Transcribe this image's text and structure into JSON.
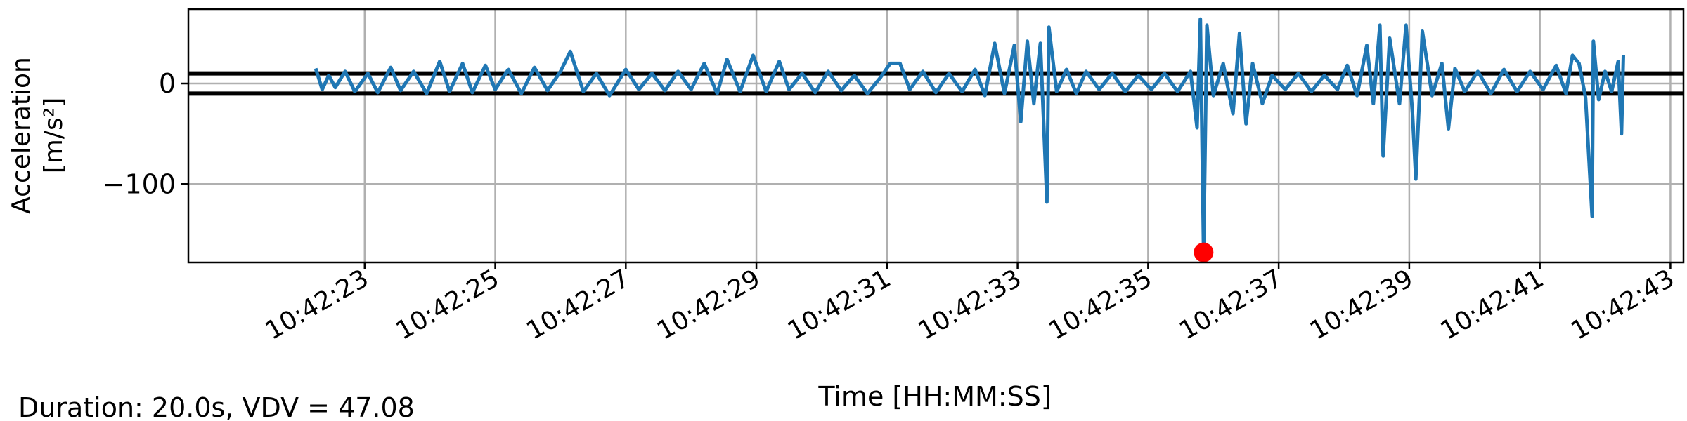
{
  "chart_data": {
    "type": "line",
    "xlabel": "Time [HH:MM:SS]",
    "ylabel_line1": "Acceleration",
    "ylabel_line2": "[m/s²]",
    "footer": "Duration: 20.0s, VDV = 47.08",
    "xlim": [
      "10:42:20.3",
      "10:42:43.2"
    ],
    "ylim": [
      -178,
      74
    ],
    "grid": true,
    "x_ticks": [
      "10:42:23",
      "10:42:25",
      "10:42:27",
      "10:42:29",
      "10:42:31",
      "10:42:33",
      "10:42:35",
      "10:42:37",
      "10:42:39",
      "10:42:41",
      "10:42:43"
    ],
    "y_ticks": [
      0,
      -100
    ],
    "y_tick_labels": [
      "0",
      "−100"
    ],
    "thresholds": [
      10,
      -10
    ],
    "threshold_color": "#000000",
    "series": [
      {
        "color": "#1f77b4",
        "points": [
          [
            "10:42:22.25",
            15
          ],
          [
            "10:42:22.35",
            -6
          ],
          [
            "10:42:22.45",
            8
          ],
          [
            "10:42:22.55",
            -4
          ],
          [
            "10:42:22.7",
            12
          ],
          [
            "10:42:22.85",
            -8
          ],
          [
            "10:42:23.05",
            10
          ],
          [
            "10:42:23.2",
            -9
          ],
          [
            "10:42:23.4",
            16
          ],
          [
            "10:42:23.55",
            -7
          ],
          [
            "10:42:23.75",
            12
          ],
          [
            "10:42:23.95",
            -10
          ],
          [
            "10:42:24.15",
            22
          ],
          [
            "10:42:24.3",
            -8
          ],
          [
            "10:42:24.5",
            20
          ],
          [
            "10:42:24.65",
            -9
          ],
          [
            "10:42:24.85",
            18
          ],
          [
            "10:42:25.0",
            -6
          ],
          [
            "10:42:25.2",
            14
          ],
          [
            "10:42:25.4",
            -10
          ],
          [
            "10:42:25.6",
            16
          ],
          [
            "10:42:25.8",
            -7
          ],
          [
            "10:42:26.0",
            12
          ],
          [
            "10:42:26.15",
            32
          ],
          [
            "10:42:26.35",
            -8
          ],
          [
            "10:42:26.55",
            10
          ],
          [
            "10:42:26.75",
            -12
          ],
          [
            "10:42:27.0",
            14
          ],
          [
            "10:42:27.2",
            -6
          ],
          [
            "10:42:27.4",
            10
          ],
          [
            "10:42:27.6",
            -7
          ],
          [
            "10:42:27.8",
            12
          ],
          [
            "10:42:28.0",
            -6
          ],
          [
            "10:42:28.2",
            20
          ],
          [
            "10:42:28.4",
            -10
          ],
          [
            "10:42:28.55",
            24
          ],
          [
            "10:42:28.75",
            -8
          ],
          [
            "10:42:28.95",
            28
          ],
          [
            "10:42:29.15",
            -8
          ],
          [
            "10:42:29.35",
            22
          ],
          [
            "10:42:29.5",
            -6
          ],
          [
            "10:42:29.7",
            10
          ],
          [
            "10:42:29.9",
            -9
          ],
          [
            "10:42:30.1",
            12
          ],
          [
            "10:42:30.3",
            -7
          ],
          [
            "10:42:30.5",
            8
          ],
          [
            "10:42:30.7",
            -10
          ],
          [
            "10:42:30.9",
            6
          ],
          [
            "10:42:31.05",
            20
          ],
          [
            "10:42:31.2",
            20
          ],
          [
            "10:42:31.35",
            -6
          ],
          [
            "10:42:31.55",
            12
          ],
          [
            "10:42:31.75",
            -9
          ],
          [
            "10:42:31.95",
            10
          ],
          [
            "10:42:32.15",
            -8
          ],
          [
            "10:42:32.35",
            14
          ],
          [
            "10:42:32.5",
            -12
          ],
          [
            "10:42:32.65",
            40
          ],
          [
            "10:42:32.8",
            -10
          ],
          [
            "10:42:32.95",
            38
          ],
          [
            "10:42:33.05",
            -38
          ],
          [
            "10:42:33.15",
            42
          ],
          [
            "10:42:33.25",
            -20
          ],
          [
            "10:42:33.35",
            40
          ],
          [
            "10:42:33.45",
            -118
          ],
          [
            "10:42:33.48",
            56
          ],
          [
            "10:42:33.6",
            -8
          ],
          [
            "10:42:33.75",
            14
          ],
          [
            "10:42:33.9",
            -10
          ],
          [
            "10:42:34.05",
            12
          ],
          [
            "10:42:34.25",
            -6
          ],
          [
            "10:42:34.45",
            10
          ],
          [
            "10:42:34.65",
            -8
          ],
          [
            "10:42:34.85",
            8
          ],
          [
            "10:42:35.05",
            -6
          ],
          [
            "10:42:35.25",
            10
          ],
          [
            "10:42:35.45",
            -8
          ],
          [
            "10:42:35.65",
            12
          ],
          [
            "10:42:35.75",
            -44
          ],
          [
            "10:42:35.8",
            64
          ],
          [
            "10:42:35.85",
            -168
          ],
          [
            "10:42:35.9",
            58
          ],
          [
            "10:42:36.0",
            -12
          ],
          [
            "10:42:36.15",
            20
          ],
          [
            "10:42:36.3",
            -30
          ],
          [
            "10:42:36.4",
            50
          ],
          [
            "10:42:36.5",
            -40
          ],
          [
            "10:42:36.6",
            20
          ],
          [
            "10:42:36.75",
            -20
          ],
          [
            "10:42:36.9",
            8
          ],
          [
            "10:42:37.1",
            -6
          ],
          [
            "10:42:37.3",
            10
          ],
          [
            "10:42:37.5",
            -8
          ],
          [
            "10:42:37.7",
            8
          ],
          [
            "10:42:37.9",
            -6
          ],
          [
            "10:42:38.05",
            18
          ],
          [
            "10:42:38.2",
            -12
          ],
          [
            "10:42:38.35",
            38
          ],
          [
            "10:42:38.45",
            -20
          ],
          [
            "10:42:38.55",
            58
          ],
          [
            "10:42:38.6",
            -72
          ],
          [
            "10:42:38.7",
            45
          ],
          [
            "10:42:38.85",
            -20
          ],
          [
            "10:42:38.95",
            58
          ],
          [
            "10:42:39.05",
            -30
          ],
          [
            "10:42:39.1",
            -95
          ],
          [
            "10:42:39.2",
            52
          ],
          [
            "10:42:39.35",
            -12
          ],
          [
            "10:42:39.5",
            20
          ],
          [
            "10:42:39.6",
            -45
          ],
          [
            "10:42:39.7",
            15
          ],
          [
            "10:42:39.85",
            -8
          ],
          [
            "10:42:40.05",
            12
          ],
          [
            "10:42:40.25",
            -10
          ],
          [
            "10:42:40.45",
            14
          ],
          [
            "10:42:40.65",
            -8
          ],
          [
            "10:42:40.85",
            12
          ],
          [
            "10:42:41.05",
            -6
          ],
          [
            "10:42:41.25",
            18
          ],
          [
            "10:42:41.4",
            -10
          ],
          [
            "10:42:41.5",
            28
          ],
          [
            "10:42:41.6",
            20
          ],
          [
            "10:42:41.7",
            -14
          ],
          [
            "10:42:41.8",
            -132
          ],
          [
            "10:42:41.82",
            42
          ],
          [
            "10:42:41.9",
            -16
          ],
          [
            "10:42:42.0",
            12
          ],
          [
            "10:42:42.1",
            -8
          ],
          [
            "10:42:42.2",
            22
          ],
          [
            "10:42:42.25",
            -50
          ],
          [
            "10:42:42.28",
            28
          ]
        ]
      }
    ],
    "max_marker": {
      "x": "10:42:35.85",
      "y": -168,
      "color": "#ff0000"
    }
  }
}
